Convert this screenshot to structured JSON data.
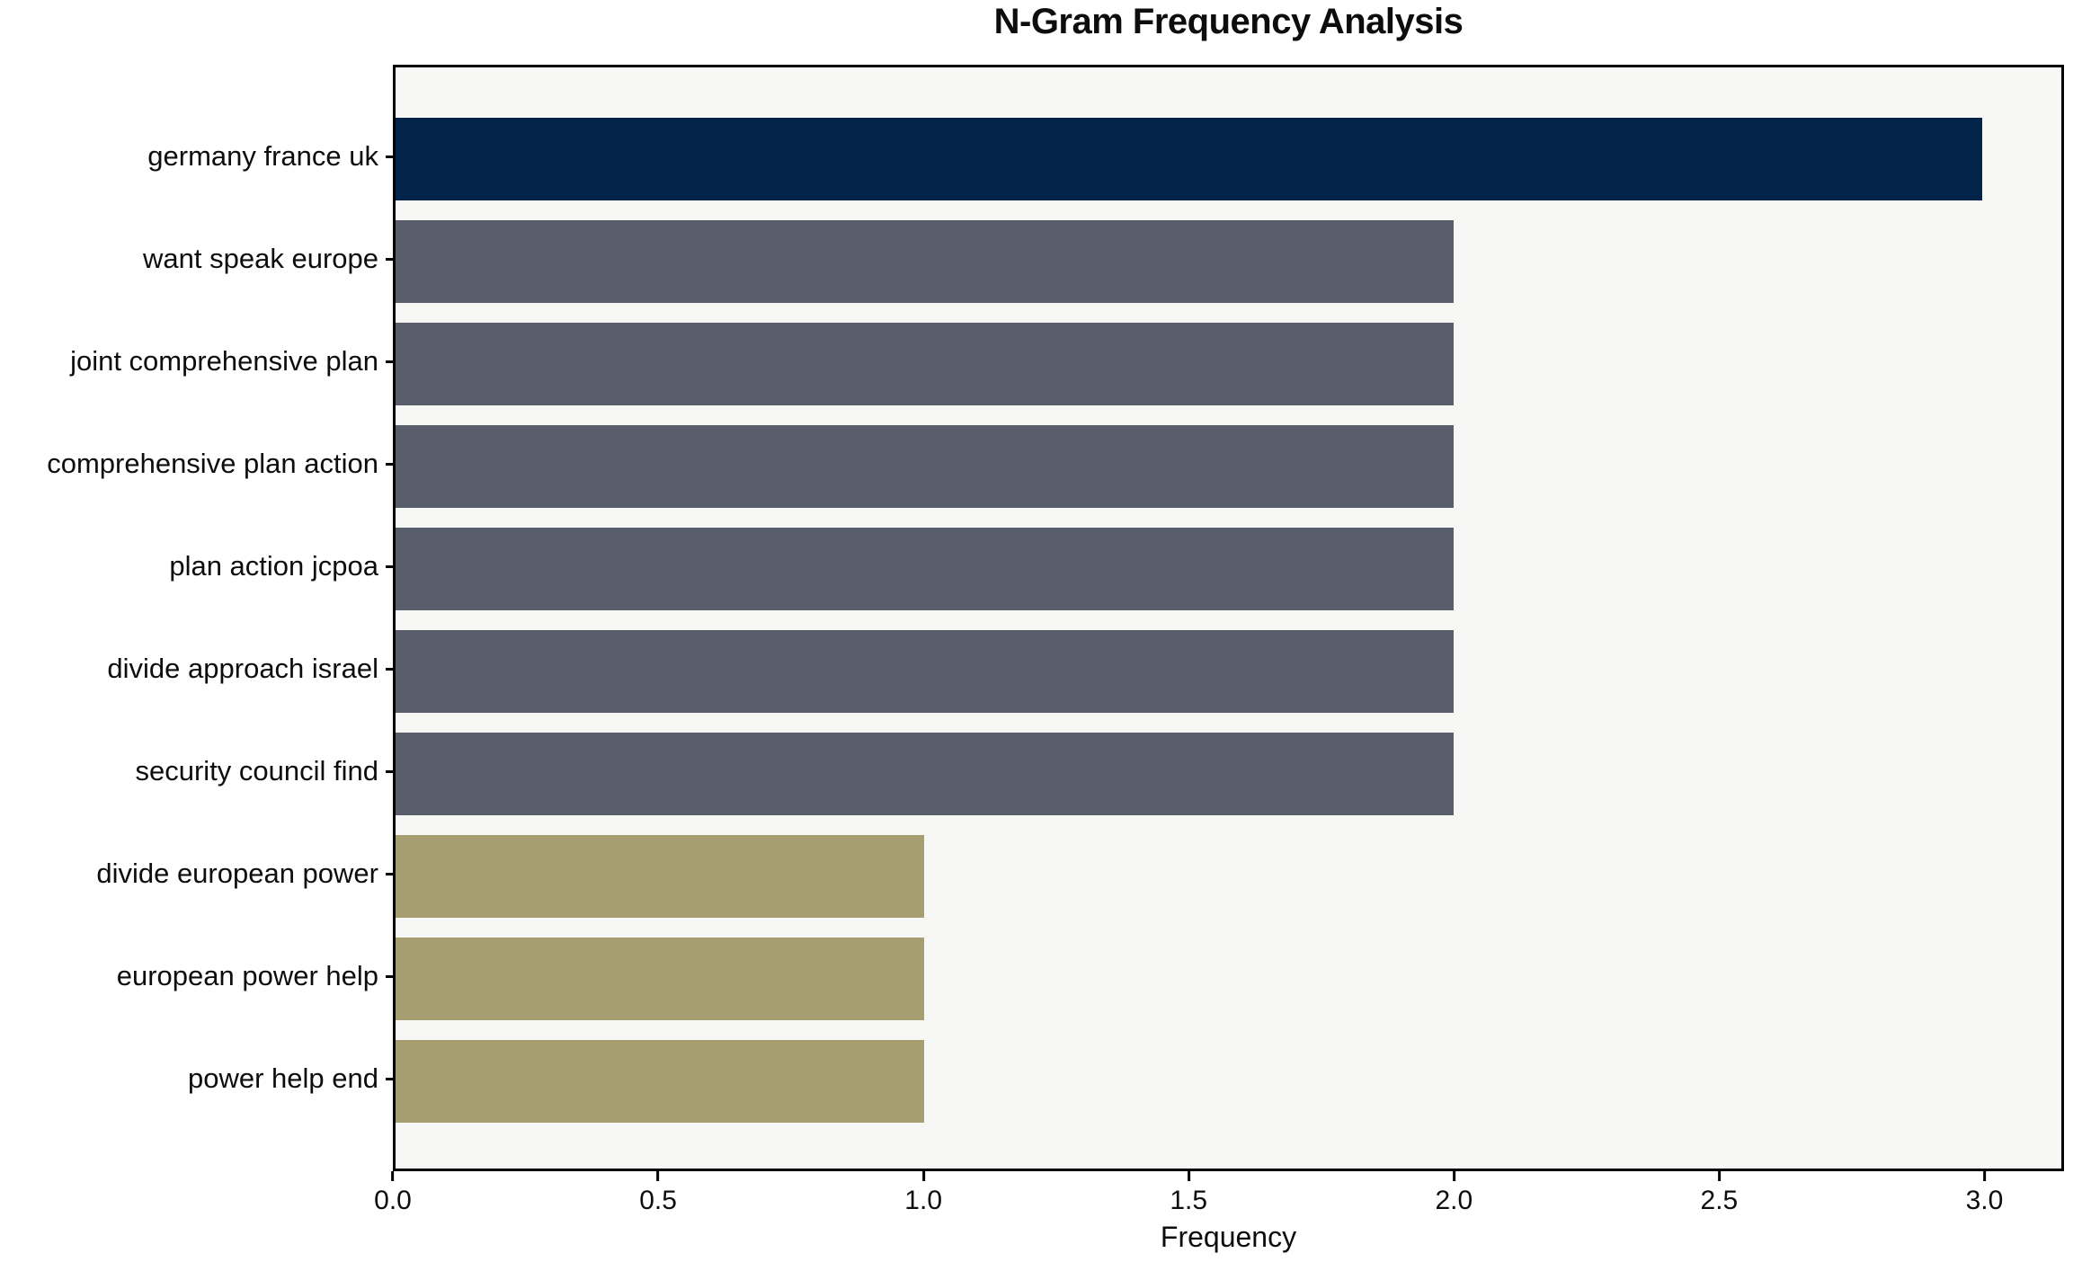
{
  "title": "N-Gram Frequency Analysis",
  "colors": {
    "bar_high": "#02234a",
    "bar_mid": "#575d6b",
    "bar_low": "#a69e71",
    "plot_background": "#f7f7f5",
    "figure_background": "#ffffff",
    "spine": "#000000",
    "text": "#0d0d0d"
  },
  "chart_data": {
    "type": "bar",
    "orientation": "horizontal",
    "title": "N-Gram Frequency Analysis",
    "xlabel": "Frequency",
    "ylabel": "",
    "categories": [
      "germany france uk",
      "want speak europe",
      "joint comprehensive plan",
      "comprehensive plan action",
      "plan action jcpoa",
      "divide approach israel",
      "security council find",
      "divide european power",
      "european power help",
      "power help end"
    ],
    "values": [
      3,
      2,
      2,
      2,
      2,
      2,
      2,
      1,
      1,
      1
    ],
    "bar_colors": [
      "#02234a",
      "#575d6b",
      "#575d6b",
      "#575d6b",
      "#575d6b",
      "#575d6b",
      "#575d6b",
      "#a69e71",
      "#a69e71",
      "#a69e71"
    ],
    "xlim": [
      0,
      3.15
    ],
    "xticks": [
      0.0,
      0.5,
      1.0,
      1.5,
      2.0,
      2.5,
      3.0
    ],
    "xtick_labels": [
      "0.0",
      "0.5",
      "1.0",
      "1.5",
      "2.0",
      "2.5",
      "3.0"
    ],
    "grid": false,
    "legend_position": "none"
  }
}
